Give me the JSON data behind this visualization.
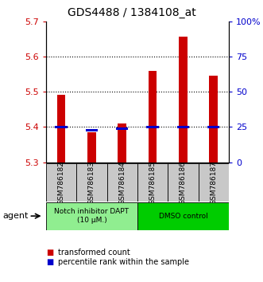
{
  "title": "GDS4488 / 1384108_at",
  "samples": [
    "GSM786182",
    "GSM786183",
    "GSM786184",
    "GSM786185",
    "GSM786186",
    "GSM786187"
  ],
  "red_values": [
    5.49,
    5.385,
    5.41,
    5.56,
    5.655,
    5.545
  ],
  "blue_values": [
    5.4,
    5.39,
    5.395,
    5.4,
    5.4,
    5.4
  ],
  "y_min": 5.3,
  "y_max": 5.7,
  "y_ticks_left": [
    5.3,
    5.4,
    5.5,
    5.6,
    5.7
  ],
  "y_ticks_right": [
    0,
    25,
    50,
    75,
    100
  ],
  "y_right_labels": [
    "0",
    "25",
    "50",
    "75",
    "100%"
  ],
  "group1_label": "Notch inhibitor DAPT\n(10 μM.)",
  "group2_label": "DMSO control",
  "group1_color": "#90EE90",
  "group2_color": "#00CC00",
  "agent_label": "agent",
  "legend_red": "transformed count",
  "legend_blue": "percentile rank within the sample",
  "bar_color": "#CC0000",
  "blue_color": "#0000CC",
  "title_fontsize": 10,
  "tick_fontsize": 8,
  "label_fontsize": 7.5
}
